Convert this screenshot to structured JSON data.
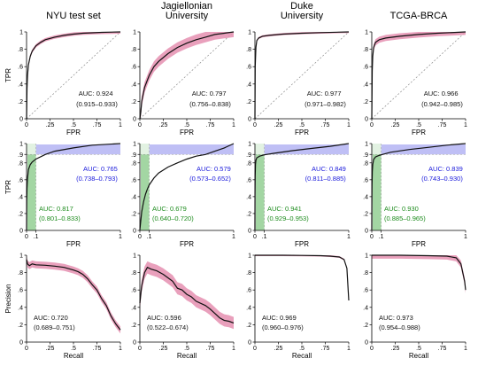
{
  "colors": {
    "curve": "#111111",
    "band": "#e58fb0",
    "diagonal": "#8c8c8c",
    "blue_text": "#1a1adb",
    "blue_band": "#a9a9f2",
    "green_text": "#1e8c1e",
    "green_band": "#8ccc8c",
    "light_green": "#d6ecd6"
  },
  "chart_data": [
    {
      "type": "line",
      "kind": "roc",
      "title": "NYU test set",
      "xlabel": "FPR",
      "ylabel": "TPR",
      "xticks": [
        "0",
        ".25",
        ".5",
        ".75",
        "1"
      ],
      "yticks": [
        "0",
        ".2",
        ".4",
        ".6",
        ".8",
        "1"
      ],
      "xlim": [
        0,
        1
      ],
      "ylim": [
        0,
        1
      ],
      "grid": false,
      "curve": [
        [
          0,
          0
        ],
        [
          0.005,
          0.35
        ],
        [
          0.01,
          0.5
        ],
        [
          0.02,
          0.62
        ],
        [
          0.04,
          0.72
        ],
        [
          0.06,
          0.78
        ],
        [
          0.1,
          0.84
        ],
        [
          0.15,
          0.88
        ],
        [
          0.2,
          0.91
        ],
        [
          0.3,
          0.94
        ],
        [
          0.4,
          0.96
        ],
        [
          0.5,
          0.975
        ],
        [
          0.6,
          0.985
        ],
        [
          0.8,
          0.995
        ],
        [
          1,
          1
        ]
      ],
      "band_width": 0.02,
      "annotations": [
        {
          "text": "AUC: 0.924",
          "color": "black"
        },
        {
          "text": "(0.915–0.933)",
          "color": "black"
        }
      ]
    },
    {
      "type": "line",
      "kind": "roc",
      "title": "Jagiellonian\nUniversity",
      "xlabel": "FPR",
      "ylabel": "",
      "xticks": [
        "0",
        ".25",
        ".5",
        ".75",
        "1"
      ],
      "yticks": [
        "0",
        ".2",
        ".4",
        ".6",
        ".8",
        "1"
      ],
      "xlim": [
        0,
        1
      ],
      "ylim": [
        0,
        1
      ],
      "grid": false,
      "curve": [
        [
          0,
          0
        ],
        [
          0.01,
          0.08
        ],
        [
          0.02,
          0.2
        ],
        [
          0.05,
          0.36
        ],
        [
          0.1,
          0.5
        ],
        [
          0.15,
          0.6
        ],
        [
          0.2,
          0.66
        ],
        [
          0.3,
          0.75
        ],
        [
          0.4,
          0.82
        ],
        [
          0.5,
          0.87
        ],
        [
          0.6,
          0.91
        ],
        [
          0.7,
          0.94
        ],
        [
          0.8,
          0.97
        ],
        [
          0.9,
          0.985
        ],
        [
          1,
          1
        ]
      ],
      "band_width": 0.06,
      "annotations": [
        {
          "text": "AUC: 0.797",
          "color": "black"
        },
        {
          "text": "(0.756–0.838)",
          "color": "black"
        }
      ]
    },
    {
      "type": "line",
      "kind": "roc",
      "title": "Duke\nUniversity",
      "xlabel": "FPR",
      "ylabel": "",
      "xticks": [
        "0",
        ".25",
        ".5",
        ".75",
        "1"
      ],
      "yticks": [
        "0",
        ".2",
        ".4",
        ".6",
        ".8",
        "1"
      ],
      "xlim": [
        0,
        1
      ],
      "ylim": [
        0,
        1
      ],
      "grid": false,
      "curve": [
        [
          0,
          0
        ],
        [
          0.003,
          0.6
        ],
        [
          0.01,
          0.82
        ],
        [
          0.02,
          0.9
        ],
        [
          0.04,
          0.93
        ],
        [
          0.08,
          0.95
        ],
        [
          0.15,
          0.96
        ],
        [
          0.3,
          0.975
        ],
        [
          0.5,
          0.985
        ],
        [
          0.7,
          0.992
        ],
        [
          1,
          1
        ]
      ],
      "band_width": 0.012,
      "annotations": [
        {
          "text": "AUC: 0.977",
          "color": "black"
        },
        {
          "text": "(0.971–0.982)",
          "color": "black"
        }
      ]
    },
    {
      "type": "line",
      "kind": "roc",
      "title": "TCGA-BRCA",
      "xlabel": "FPR",
      "ylabel": "",
      "xticks": [
        "0",
        ".25",
        ".5",
        ".75",
        "1"
      ],
      "yticks": [
        "0",
        ".2",
        ".4",
        ".6",
        ".8",
        "1"
      ],
      "xlim": [
        0,
        1
      ],
      "ylim": [
        0,
        1
      ],
      "grid": false,
      "curve": [
        [
          0,
          0
        ],
        [
          0.005,
          0.55
        ],
        [
          0.01,
          0.72
        ],
        [
          0.02,
          0.82
        ],
        [
          0.04,
          0.88
        ],
        [
          0.08,
          0.91
        ],
        [
          0.15,
          0.93
        ],
        [
          0.3,
          0.95
        ],
        [
          0.5,
          0.97
        ],
        [
          0.7,
          0.985
        ],
        [
          1,
          1
        ]
      ],
      "band_width": 0.035,
      "annotations": [
        {
          "text": "AUC: 0.966",
          "color": "black"
        },
        {
          "text": "(0.942–0.985)",
          "color": "black"
        }
      ]
    },
    {
      "type": "line",
      "kind": "roc_zoom",
      "title": "",
      "xlabel": "FPR",
      "ylabel": "TPR",
      "xticks": [
        "0",
        ".1",
        "1"
      ],
      "yticks": [
        "0",
        ".2",
        ".4",
        ".6",
        ".8",
        ".9",
        "1"
      ],
      "x_break": 0.1,
      "y_break": 0.9,
      "grid": false,
      "curve": [
        [
          0,
          0
        ],
        [
          0.002,
          0.35
        ],
        [
          0.005,
          0.5
        ],
        [
          0.01,
          0.62
        ],
        [
          0.02,
          0.72
        ],
        [
          0.04,
          0.78
        ],
        [
          0.06,
          0.81
        ],
        [
          0.1,
          0.845
        ],
        [
          0.2,
          0.9
        ],
        [
          0.3,
          0.93
        ],
        [
          0.5,
          0.96
        ],
        [
          0.7,
          0.985
        ],
        [
          1,
          1
        ]
      ],
      "annotations": [
        {
          "text": "AUC: 0.765",
          "color": "blue"
        },
        {
          "text": "(0.738–0.793)",
          "color": "blue"
        },
        {
          "text": "AUC: 0.817",
          "color": "green"
        },
        {
          "text": "(0.801–0.833)",
          "color": "green"
        }
      ]
    },
    {
      "type": "line",
      "kind": "roc_zoom",
      "title": "",
      "xlabel": "FPR",
      "ylabel": "",
      "xticks": [
        "0",
        ".1",
        "1"
      ],
      "yticks": [
        "0",
        ".2",
        ".4",
        ".6",
        ".8",
        ".9",
        "1"
      ],
      "x_break": 0.1,
      "y_break": 0.9,
      "grid": false,
      "curve": [
        [
          0,
          0
        ],
        [
          0.005,
          0.06
        ],
        [
          0.01,
          0.12
        ],
        [
          0.02,
          0.22
        ],
        [
          0.04,
          0.34
        ],
        [
          0.06,
          0.43
        ],
        [
          0.08,
          0.49
        ],
        [
          0.1,
          0.54
        ],
        [
          0.15,
          0.62
        ],
        [
          0.2,
          0.68
        ],
        [
          0.3,
          0.75
        ],
        [
          0.4,
          0.8
        ],
        [
          0.5,
          0.845
        ],
        [
          0.6,
          0.88
        ],
        [
          0.7,
          0.9
        ],
        [
          0.8,
          0.93
        ],
        [
          0.9,
          0.96
        ],
        [
          1,
          1
        ]
      ],
      "annotations": [
        {
          "text": "AUC: 0.579",
          "color": "blue"
        },
        {
          "text": "(0.573–0.652)",
          "color": "blue"
        },
        {
          "text": "AUC: 0.679",
          "color": "green"
        },
        {
          "text": "(0.640–0.720)",
          "color": "green"
        }
      ]
    },
    {
      "type": "line",
      "kind": "roc_zoom",
      "title": "",
      "xlabel": "FPR",
      "ylabel": "",
      "xticks": [
        "0",
        ".1",
        "1"
      ],
      "yticks": [
        "0",
        ".2",
        ".4",
        ".6",
        ".8",
        ".9",
        "1"
      ],
      "x_break": 0.1,
      "y_break": 0.9,
      "grid": false,
      "curve": [
        [
          0,
          0
        ],
        [
          0.001,
          0.4
        ],
        [
          0.003,
          0.65
        ],
        [
          0.006,
          0.78
        ],
        [
          0.01,
          0.83
        ],
        [
          0.02,
          0.86
        ],
        [
          0.05,
          0.88
        ],
        [
          0.1,
          0.895
        ],
        [
          0.2,
          0.91
        ],
        [
          0.4,
          0.935
        ],
        [
          0.6,
          0.955
        ],
        [
          0.8,
          0.975
        ],
        [
          1,
          1
        ]
      ],
      "annotations": [
        {
          "text": "AUC: 0.849",
          "color": "blue"
        },
        {
          "text": "(0.811–0.885)",
          "color": "blue"
        },
        {
          "text": "AUC: 0.941",
          "color": "green"
        },
        {
          "text": "(0.929–0.953)",
          "color": "green"
        }
      ]
    },
    {
      "type": "line",
      "kind": "roc_zoom",
      "title": "",
      "xlabel": "FPR",
      "ylabel": "",
      "xticks": [
        "0",
        ".1",
        "1"
      ],
      "yticks": [
        "0",
        ".2",
        ".4",
        ".6",
        ".8",
        ".9",
        "1"
      ],
      "x_break": 0.1,
      "y_break": 0.9,
      "grid": false,
      "curve": [
        [
          0,
          0
        ],
        [
          0.001,
          0.3
        ],
        [
          0.003,
          0.55
        ],
        [
          0.006,
          0.7
        ],
        [
          0.01,
          0.78
        ],
        [
          0.02,
          0.84
        ],
        [
          0.04,
          0.87
        ],
        [
          0.07,
          0.885
        ],
        [
          0.1,
          0.895
        ],
        [
          0.2,
          0.92
        ],
        [
          0.4,
          0.945
        ],
        [
          0.6,
          0.965
        ],
        [
          0.8,
          0.985
        ],
        [
          1,
          1
        ]
      ],
      "annotations": [
        {
          "text": "AUC: 0.839",
          "color": "blue"
        },
        {
          "text": "(0.743–0.930)",
          "color": "blue"
        },
        {
          "text": "AUC: 0.930",
          "color": "green"
        },
        {
          "text": "(0.885–0.965)",
          "color": "green"
        }
      ]
    },
    {
      "type": "line",
      "kind": "pr",
      "title": "",
      "xlabel": "Recall",
      "ylabel": "Precision",
      "xticks": [
        "0",
        ".25",
        ".5",
        ".75",
        "1"
      ],
      "yticks": [
        "0",
        ".2",
        ".4",
        ".6",
        ".8",
        "1"
      ],
      "xlim": [
        0,
        1
      ],
      "ylim": [
        0,
        1
      ],
      "grid": false,
      "curve": [
        [
          0,
          0.95
        ],
        [
          0.01,
          0.9
        ],
        [
          0.03,
          0.88
        ],
        [
          0.06,
          0.9
        ],
        [
          0.1,
          0.89
        ],
        [
          0.2,
          0.885
        ],
        [
          0.3,
          0.875
        ],
        [
          0.4,
          0.86
        ],
        [
          0.5,
          0.83
        ],
        [
          0.55,
          0.81
        ],
        [
          0.6,
          0.78
        ],
        [
          0.65,
          0.73
        ],
        [
          0.7,
          0.66
        ],
        [
          0.75,
          0.6
        ],
        [
          0.8,
          0.5
        ],
        [
          0.85,
          0.42
        ],
        [
          0.9,
          0.3
        ],
        [
          0.95,
          0.21
        ],
        [
          1,
          0.14
        ]
      ],
      "band_width": 0.04,
      "annotations": [
        {
          "text": "AUC: 0.720",
          "color": "black"
        },
        {
          "text": "(0.689–0.751)",
          "color": "black"
        }
      ]
    },
    {
      "type": "line",
      "kind": "pr",
      "title": "",
      "xlabel": "Recall",
      "ylabel": "",
      "xticks": [
        "0",
        ".25",
        ".5",
        ".75",
        "1"
      ],
      "yticks": [
        "0",
        ".2",
        ".4",
        ".6",
        ".8",
        "1"
      ],
      "xlim": [
        0,
        1
      ],
      "ylim": [
        0,
        1
      ],
      "grid": false,
      "curve": [
        [
          0,
          0.45
        ],
        [
          0.02,
          0.65
        ],
        [
          0.05,
          0.8
        ],
        [
          0.08,
          0.86
        ],
        [
          0.12,
          0.84
        ],
        [
          0.18,
          0.82
        ],
        [
          0.25,
          0.78
        ],
        [
          0.3,
          0.74
        ],
        [
          0.35,
          0.7
        ],
        [
          0.4,
          0.62
        ],
        [
          0.45,
          0.6
        ],
        [
          0.5,
          0.55
        ],
        [
          0.55,
          0.52
        ],
        [
          0.6,
          0.47
        ],
        [
          0.7,
          0.42
        ],
        [
          0.75,
          0.38
        ],
        [
          0.8,
          0.33
        ],
        [
          0.85,
          0.28
        ],
        [
          0.9,
          0.25
        ],
        [
          0.95,
          0.24
        ],
        [
          1,
          0.22
        ]
      ],
      "band_width": 0.07,
      "annotations": [
        {
          "text": "AUC: 0.596",
          "color": "black"
        },
        {
          "text": "(0.522–0.674)",
          "color": "black"
        }
      ]
    },
    {
      "type": "line",
      "kind": "pr",
      "title": "",
      "xlabel": "Recall",
      "ylabel": "",
      "xticks": [
        "0",
        ".25",
        ".5",
        ".75",
        "1"
      ],
      "yticks": [
        "0",
        ".2",
        ".4",
        ".6",
        ".8",
        "1"
      ],
      "xlim": [
        0,
        1
      ],
      "ylim": [
        0,
        1
      ],
      "grid": false,
      "curve": [
        [
          0,
          1
        ],
        [
          0.3,
          1
        ],
        [
          0.5,
          0.998
        ],
        [
          0.7,
          0.995
        ],
        [
          0.8,
          0.99
        ],
        [
          0.9,
          0.98
        ],
        [
          0.95,
          0.95
        ],
        [
          0.98,
          0.85
        ],
        [
          1,
          0.48
        ]
      ],
      "band_width": 0.01,
      "annotations": [
        {
          "text": "AUC: 0.969",
          "color": "black"
        },
        {
          "text": "(0.960–0.976)",
          "color": "black"
        }
      ]
    },
    {
      "type": "line",
      "kind": "pr",
      "title": "",
      "xlabel": "Recall",
      "ylabel": "",
      "xticks": [
        "0",
        ".25",
        ".5",
        ".75",
        "1"
      ],
      "yticks": [
        "0",
        ".2",
        ".4",
        ".6",
        ".8",
        "1"
      ],
      "xlim": [
        0,
        1
      ],
      "ylim": [
        0,
        1
      ],
      "grid": false,
      "curve": [
        [
          0,
          1
        ],
        [
          0.3,
          1
        ],
        [
          0.6,
          0.995
        ],
        [
          0.8,
          0.99
        ],
        [
          0.9,
          0.97
        ],
        [
          0.95,
          0.9
        ],
        [
          0.97,
          0.8
        ],
        [
          0.99,
          0.7
        ],
        [
          1,
          0.6
        ]
      ],
      "band_width": 0.04,
      "annotations": [
        {
          "text": "AUC: 0.973",
          "color": "black"
        },
        {
          "text": "(0.954–0.988)",
          "color": "black"
        }
      ]
    }
  ]
}
